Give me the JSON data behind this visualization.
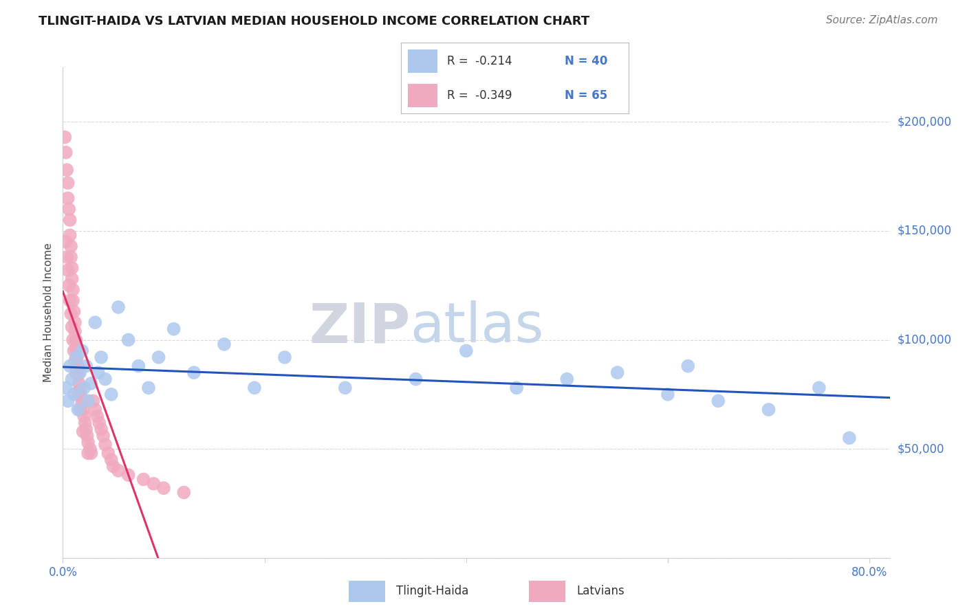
{
  "title": "TLINGIT-HAIDA VS LATVIAN MEDIAN HOUSEHOLD INCOME CORRELATION CHART",
  "source": "Source: ZipAtlas.com",
  "ylabel": "Median Household Income",
  "xlim": [
    0.0,
    0.82
  ],
  "ylim": [
    0,
    225000
  ],
  "ytick_vals": [
    0,
    50000,
    100000,
    150000,
    200000
  ],
  "ytick_labels": [
    "",
    "$50,000",
    "$100,000",
    "$150,000",
    "$200,000"
  ],
  "xtick_vals": [
    0.0,
    0.2,
    0.4,
    0.6,
    0.8
  ],
  "xtick_labels": [
    "0.0%",
    "",
    "",
    "",
    "80.0%"
  ],
  "legend_r_blue": "R =  -0.214",
  "legend_n_blue": "N = 40",
  "legend_r_pink": "R =  -0.349",
  "legend_n_pink": "N = 65",
  "legend_label_blue": "Tlingit-Haida",
  "legend_label_pink": "Latvians",
  "blue_fill": "#adc8ee",
  "pink_fill": "#f0aabf",
  "trend_blue": "#2255bb",
  "trend_pink_solid": "#dd3366",
  "trend_pink_dash": "#f5c0d0",
  "grid_color": "#d8d8d8",
  "axis_color": "#cccccc",
  "label_color": "#4477cc",
  "title_color": "#1a1a1a",
  "watermark_zip_color": "#d0d8e8",
  "watermark_atlas_color": "#c8d8f0",
  "tlingit_x": [
    0.003,
    0.005,
    0.007,
    0.009,
    0.011,
    0.013,
    0.015,
    0.017,
    0.019,
    0.021,
    0.023,
    0.025,
    0.028,
    0.032,
    0.035,
    0.038,
    0.042,
    0.048,
    0.055,
    0.065,
    0.075,
    0.085,
    0.095,
    0.11,
    0.13,
    0.16,
    0.19,
    0.22,
    0.28,
    0.35,
    0.4,
    0.45,
    0.5,
    0.55,
    0.6,
    0.62,
    0.65,
    0.7,
    0.75,
    0.78
  ],
  "tlingit_y": [
    78000,
    72000,
    88000,
    82000,
    75000,
    92000,
    68000,
    85000,
    95000,
    78000,
    88000,
    72000,
    80000,
    108000,
    85000,
    92000,
    82000,
    75000,
    115000,
    100000,
    88000,
    78000,
    92000,
    105000,
    85000,
    98000,
    78000,
    92000,
    78000,
    82000,
    95000,
    78000,
    82000,
    85000,
    75000,
    88000,
    72000,
    68000,
    78000,
    55000
  ],
  "latvian_x": [
    0.002,
    0.003,
    0.004,
    0.005,
    0.005,
    0.006,
    0.007,
    0.007,
    0.008,
    0.008,
    0.009,
    0.009,
    0.01,
    0.01,
    0.011,
    0.012,
    0.012,
    0.013,
    0.013,
    0.014,
    0.015,
    0.015,
    0.016,
    0.017,
    0.018,
    0.019,
    0.02,
    0.021,
    0.022,
    0.023,
    0.024,
    0.025,
    0.027,
    0.028,
    0.03,
    0.032,
    0.034,
    0.036,
    0.038,
    0.04,
    0.042,
    0.045,
    0.048,
    0.05,
    0.055,
    0.065,
    0.08,
    0.09,
    0.1,
    0.12,
    0.003,
    0.004,
    0.005,
    0.006,
    0.007,
    0.008,
    0.009,
    0.01,
    0.011,
    0.012,
    0.013,
    0.015,
    0.017,
    0.02,
    0.025
  ],
  "latvian_y": [
    193000,
    186000,
    178000,
    172000,
    165000,
    160000,
    155000,
    148000,
    143000,
    138000,
    133000,
    128000,
    123000,
    118000,
    113000,
    108000,
    104000,
    100000,
    96000,
    92000,
    88000,
    84000,
    80000,
    77000,
    74000,
    71000,
    68000,
    65000,
    62000,
    59000,
    56000,
    53000,
    50000,
    48000,
    72000,
    68000,
    65000,
    62000,
    59000,
    56000,
    52000,
    48000,
    45000,
    42000,
    40000,
    38000,
    36000,
    34000,
    32000,
    30000,
    145000,
    138000,
    132000,
    125000,
    118000,
    112000,
    106000,
    100000,
    95000,
    90000,
    85000,
    76000,
    68000,
    58000,
    48000
  ]
}
